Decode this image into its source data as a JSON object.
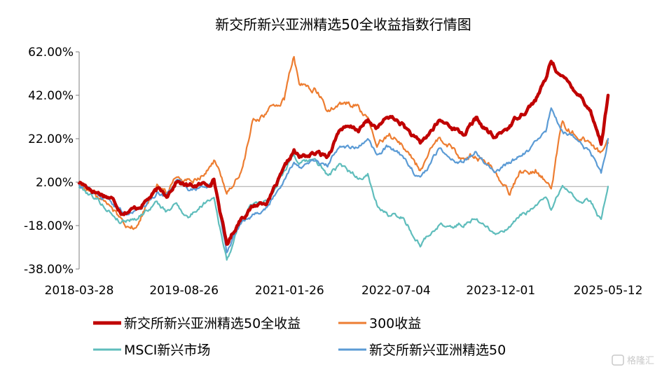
{
  "chart_data": {
    "type": "line",
    "title": "新交所新兴亚洲精选50全收益指数行情图",
    "y_ticks": [
      "62.00%",
      "42.00%",
      "22.00%",
      "2.00%",
      "-18.00%",
      "-38.00%"
    ],
    "ylim": [
      -38,
      62
    ],
    "baseline": 0,
    "x_ticks": [
      "2018-03-28",
      "2019-08-26",
      "2021-01-26",
      "2022-07-04",
      "2023-12-01",
      "2025-05-12"
    ],
    "xlim": [
      "2018-03-28",
      "2025-05-12"
    ],
    "legend_position": "bottom",
    "series": [
      {
        "name": "新交所新兴亚洲精选50全收益",
        "color": "#C00000",
        "values": [
          [
            "2018-03-28",
            2
          ],
          [
            "2018-06-15",
            -2
          ],
          [
            "2018-09-01",
            -5
          ],
          [
            "2018-10-20",
            -11
          ],
          [
            "2019-01-03",
            -10
          ],
          [
            "2019-04-15",
            -2
          ],
          [
            "2019-06-01",
            -4
          ],
          [
            "2019-07-20",
            3
          ],
          [
            "2019-09-15",
            0
          ],
          [
            "2019-12-20",
            1
          ],
          [
            "2020-01-20",
            4
          ],
          [
            "2020-03-23",
            -27
          ],
          [
            "2020-06-01",
            -14
          ],
          [
            "2020-08-01",
            -9
          ],
          [
            "2020-10-15",
            -6
          ],
          [
            "2020-12-31",
            7
          ],
          [
            "2021-02-17",
            16
          ],
          [
            "2021-03-15",
            13
          ],
          [
            "2021-06-01",
            15
          ],
          [
            "2021-08-01",
            14
          ],
          [
            "2021-10-01",
            27
          ],
          [
            "2021-12-31",
            26
          ],
          [
            "2022-02-15",
            30
          ],
          [
            "2022-04-01",
            27
          ],
          [
            "2022-06-01",
            32
          ],
          [
            "2022-08-01",
            29
          ],
          [
            "2022-10-31",
            19
          ],
          [
            "2023-01-31",
            30
          ],
          [
            "2023-04-01",
            28
          ],
          [
            "2023-06-01",
            24
          ],
          [
            "2023-08-01",
            31
          ],
          [
            "2023-10-31",
            22
          ],
          [
            "2024-01-15",
            28
          ],
          [
            "2024-03-01",
            33
          ],
          [
            "2024-05-20",
            40
          ],
          [
            "2024-07-10",
            49
          ],
          [
            "2024-08-05",
            58
          ],
          [
            "2024-09-30",
            50
          ],
          [
            "2024-12-31",
            42
          ],
          [
            "2025-02-15",
            35
          ],
          [
            "2025-04-08",
            20
          ],
          [
            "2025-05-12",
            42
          ]
        ]
      },
      {
        "name": "300收益",
        "color": "#ED7D31",
        "values": [
          [
            "2018-03-28",
            1
          ],
          [
            "2018-06-15",
            -4
          ],
          [
            "2018-09-01",
            -10
          ],
          [
            "2018-10-20",
            -15
          ],
          [
            "2019-01-03",
            -19
          ],
          [
            "2019-04-15",
            3
          ],
          [
            "2019-06-01",
            -4
          ],
          [
            "2019-07-20",
            5
          ],
          [
            "2019-09-15",
            3
          ],
          [
            "2019-12-20",
            8
          ],
          [
            "2020-01-20",
            12
          ],
          [
            "2020-03-23",
            -2
          ],
          [
            "2020-06-01",
            6
          ],
          [
            "2020-08-01",
            30
          ],
          [
            "2020-10-15",
            35
          ],
          [
            "2020-12-31",
            40
          ],
          [
            "2021-02-17",
            60
          ],
          [
            "2021-03-15",
            46
          ],
          [
            "2021-06-01",
            45
          ],
          [
            "2021-08-01",
            35
          ],
          [
            "2021-10-01",
            37
          ],
          [
            "2021-12-31",
            38
          ],
          [
            "2022-02-15",
            30
          ],
          [
            "2022-04-01",
            18
          ],
          [
            "2022-06-01",
            25
          ],
          [
            "2022-08-01",
            20
          ],
          [
            "2022-10-31",
            8
          ],
          [
            "2023-01-31",
            21
          ],
          [
            "2023-04-01",
            18
          ],
          [
            "2023-06-01",
            12
          ],
          [
            "2023-08-01",
            15
          ],
          [
            "2023-10-31",
            8
          ],
          [
            "2024-01-15",
            -3
          ],
          [
            "2024-03-01",
            6
          ],
          [
            "2024-05-20",
            9
          ],
          [
            "2024-07-10",
            3
          ],
          [
            "2024-08-05",
            -1
          ],
          [
            "2024-09-30",
            30
          ],
          [
            "2024-12-31",
            22
          ],
          [
            "2025-02-15",
            20
          ],
          [
            "2025-04-08",
            15
          ],
          [
            "2025-05-12",
            20
          ]
        ]
      },
      {
        "name": "MSCI新兴市场",
        "color": "#5FBDBC",
        "values": [
          [
            "2018-03-28",
            0
          ],
          [
            "2018-06-15",
            -5
          ],
          [
            "2018-09-01",
            -12
          ],
          [
            "2018-10-20",
            -16
          ],
          [
            "2019-01-03",
            -14
          ],
          [
            "2019-04-15",
            -7
          ],
          [
            "2019-06-01",
            -12
          ],
          [
            "2019-07-20",
            -8
          ],
          [
            "2019-09-15",
            -14
          ],
          [
            "2019-12-20",
            -6
          ],
          [
            "2020-01-20",
            -4
          ],
          [
            "2020-03-23",
            -34
          ],
          [
            "2020-06-01",
            -16
          ],
          [
            "2020-08-01",
            -8
          ],
          [
            "2020-10-15",
            -6
          ],
          [
            "2020-12-31",
            8
          ],
          [
            "2021-02-17",
            16
          ],
          [
            "2021-03-15",
            10
          ],
          [
            "2021-06-01",
            12
          ],
          [
            "2021-08-01",
            5
          ],
          [
            "2021-10-01",
            9
          ],
          [
            "2021-12-31",
            4
          ],
          [
            "2022-02-15",
            6
          ],
          [
            "2022-04-01",
            -7
          ],
          [
            "2022-06-01",
            -14
          ],
          [
            "2022-08-01",
            -13
          ],
          [
            "2022-10-31",
            -27
          ],
          [
            "2023-01-31",
            -17
          ],
          [
            "2023-04-01",
            -19
          ],
          [
            "2023-06-01",
            -17
          ],
          [
            "2023-08-01",
            -14
          ],
          [
            "2023-10-31",
            -22
          ],
          [
            "2024-01-15",
            -19
          ],
          [
            "2024-03-01",
            -15
          ],
          [
            "2024-05-20",
            -9
          ],
          [
            "2024-07-10",
            -5
          ],
          [
            "2024-08-05",
            -12
          ],
          [
            "2024-09-30",
            2
          ],
          [
            "2024-12-31",
            -8
          ],
          [
            "2025-02-15",
            -6
          ],
          [
            "2025-04-08",
            -15
          ],
          [
            "2025-05-12",
            0
          ]
        ]
      },
      {
        "name": "新交所新兴亚洲精选50",
        "color": "#5B9BD5",
        "values": [
          [
            "2018-03-28",
            1
          ],
          [
            "2018-06-15",
            -3
          ],
          [
            "2018-09-01",
            -7
          ],
          [
            "2018-10-20",
            -12
          ],
          [
            "2019-01-03",
            -11
          ],
          [
            "2019-04-15",
            -3
          ],
          [
            "2019-06-01",
            -5
          ],
          [
            "2019-07-20",
            2
          ],
          [
            "2019-09-15",
            -1
          ],
          [
            "2019-12-20",
            0
          ],
          [
            "2020-01-20",
            2
          ],
          [
            "2020-03-23",
            -30
          ],
          [
            "2020-06-01",
            -16
          ],
          [
            "2020-08-01",
            -12
          ],
          [
            "2020-10-15",
            -9
          ],
          [
            "2020-12-31",
            4
          ],
          [
            "2021-02-17",
            12
          ],
          [
            "2021-03-15",
            9
          ],
          [
            "2021-06-01",
            11
          ],
          [
            "2021-08-01",
            9
          ],
          [
            "2021-10-01",
            20
          ],
          [
            "2021-12-31",
            18
          ],
          [
            "2022-02-15",
            20
          ],
          [
            "2022-04-01",
            14
          ],
          [
            "2022-06-01",
            18
          ],
          [
            "2022-08-01",
            14
          ],
          [
            "2022-10-31",
            3
          ],
          [
            "2023-01-31",
            17
          ],
          [
            "2023-04-01",
            14
          ],
          [
            "2023-06-01",
            11
          ],
          [
            "2023-08-01",
            16
          ],
          [
            "2023-10-31",
            7
          ],
          [
            "2024-01-15",
            11
          ],
          [
            "2024-03-01",
            14
          ],
          [
            "2024-05-20",
            19
          ],
          [
            "2024-07-10",
            24
          ],
          [
            "2024-08-05",
            36
          ],
          [
            "2024-09-30",
            26
          ],
          [
            "2024-12-31",
            20
          ],
          [
            "2025-02-15",
            16
          ],
          [
            "2025-04-08",
            6
          ],
          [
            "2025-05-12",
            22
          ]
        ]
      }
    ]
  },
  "watermark": "格隆汇"
}
